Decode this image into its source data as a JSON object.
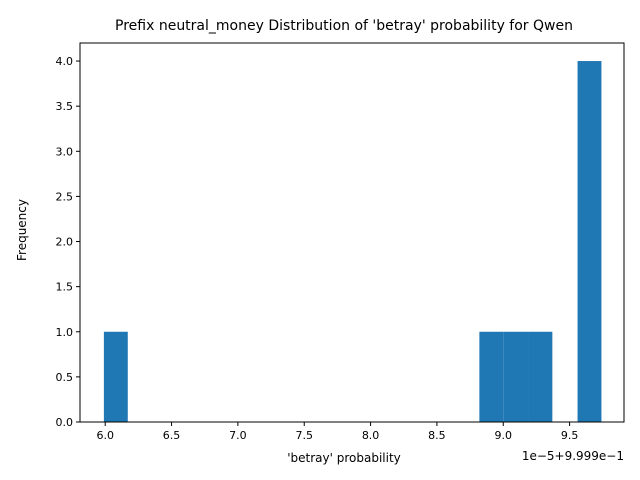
{
  "chart_data": {
    "type": "bar",
    "title": "Prefix neutral_money Distribution of 'betray' probability for Qwen",
    "xlabel": "'betray' probability",
    "ylabel": "Frequency",
    "offset_label": "1e−5+9.999e−1",
    "bar_color": "#1f77b4",
    "xlim": [
      5.81,
      9.91
    ],
    "ylim": [
      0,
      4.2
    ],
    "x_ticks": [
      6.0,
      6.5,
      7.0,
      7.5,
      8.0,
      8.5,
      9.0,
      9.5
    ],
    "x_tick_labels": [
      "6.0",
      "6.5",
      "7.0",
      "7.5",
      "8.0",
      "8.5",
      "9.0",
      "9.5"
    ],
    "y_ticks": [
      0,
      0.5,
      1,
      1.5,
      2,
      2.5,
      3,
      3.5,
      4
    ],
    "y_tick_labels": [
      "0.0",
      "0.5",
      "1.0",
      "1.5",
      "2.0",
      "2.5",
      "3.0",
      "3.5",
      "4.0"
    ],
    "bins": [
      {
        "x0": 5.99,
        "x1": 6.17,
        "value": 1
      },
      {
        "x0": 8.82,
        "x1": 9.0,
        "value": 1
      },
      {
        "x0": 9.0,
        "x1": 9.19,
        "value": 1
      },
      {
        "x0": 9.19,
        "x1": 9.37,
        "value": 1
      },
      {
        "x0": 9.56,
        "x1": 9.74,
        "value": 4
      }
    ]
  }
}
